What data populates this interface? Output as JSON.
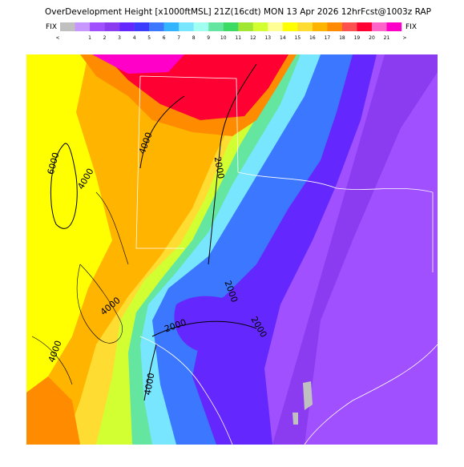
{
  "header": {
    "title": "OverDevelopment Height [x1000ftMSL] 21Z(16cdt) MON 13 Apr 2026 12hrFcst@1003z RAP",
    "fix_left": "FIX",
    "fix_right": "FIX"
  },
  "legend": {
    "colors": [
      "#c0c0c0",
      "#c896ff",
      "#a050ff",
      "#8c3cf0",
      "#6428ff",
      "#3c3cff",
      "#3c78ff",
      "#32b4ff",
      "#78e6ff",
      "#a0fff0",
      "#64e6a0",
      "#3cdc64",
      "#a0e632",
      "#d2ff32",
      "#ffff96",
      "#ffff00",
      "#ffdc32",
      "#ffb400",
      "#ff8c00",
      "#ff5050",
      "#ff0032",
      "#ff64c8",
      "#ff00c8"
    ],
    "labels": [
      "<",
      "1",
      "2",
      "3",
      "4",
      "5",
      "6",
      "7",
      "8",
      "9",
      "10",
      "11",
      "12",
      "13",
      "14",
      "15",
      "16",
      "17",
      "18",
      "19",
      "20",
      "21",
      ">"
    ]
  },
  "contour_labels": [
    "6000",
    "4000",
    "4000",
    "2000",
    "4000",
    "2000",
    "2000",
    "4000",
    "4000",
    "2000"
  ]
}
